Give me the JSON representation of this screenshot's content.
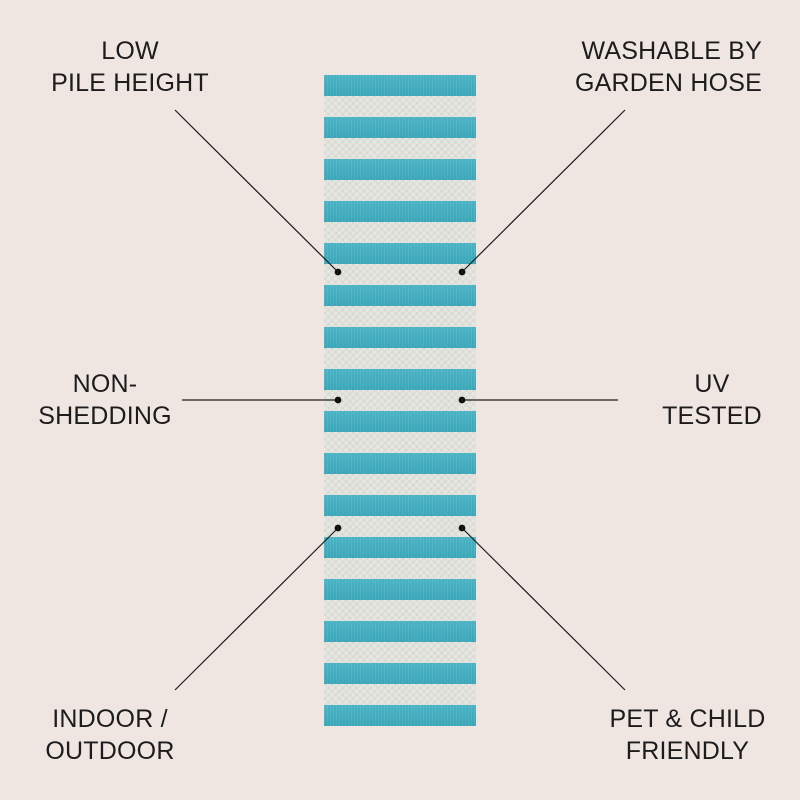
{
  "callouts": {
    "low_pile_height": {
      "line1": "LOW",
      "line2": "PILE HEIGHT"
    },
    "washable": {
      "line1": "WASHABLE BY",
      "line2": "GARDEN HOSE"
    },
    "non_shedding": {
      "line1": "NON-",
      "line2": "SHEDDING"
    },
    "uv_tested": {
      "line1": "UV",
      "line2": "TESTED"
    },
    "indoor_outdoor": {
      "line1": "INDOOR /",
      "line2": "OUTDOOR"
    },
    "pet_child": {
      "line1": "PET & CHILD",
      "line2": "FRIENDLY"
    }
  },
  "colors": {
    "background": "#efe6e2",
    "stripe_teal": "#3ea9bb",
    "stripe_cream": "#e7e7e1",
    "leader_line": "#1c1c1c"
  }
}
